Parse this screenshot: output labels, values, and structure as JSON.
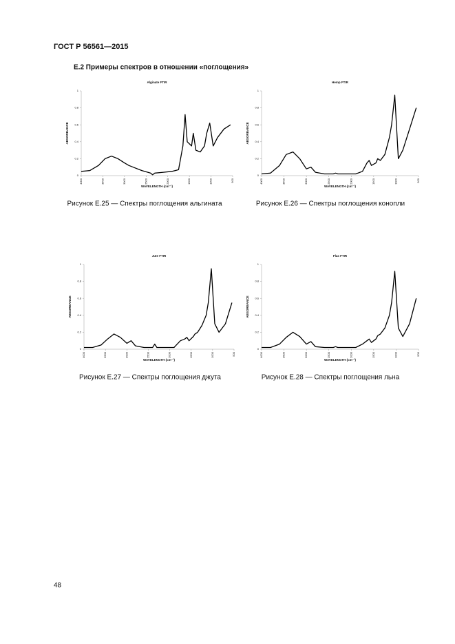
{
  "header": {
    "title": "ГОСТ Р 56561—2015"
  },
  "section": {
    "title": "Е.2 Примеры спектров в отношении «поглощения»"
  },
  "captions": [
    "Рисунок Е.25 — Спектры поглощения альгината",
    "Рисунок Е.26 — Спектры поглощения конопли",
    "Рисунок Е.27 — Спектры поглощения джута",
    "Рисунок Е.28 — Спектры поглощения льна"
  ],
  "page_number": "48",
  "chart_data": [
    {
      "type": "line",
      "title": "Alginate FTIR",
      "x_label": "WAVELENGTH (cm⁻¹)",
      "y_label": "ABSORBANCE",
      "color": "#000000",
      "x": [
        4000,
        3800,
        3600,
        3450,
        3300,
        3150,
        3000,
        2900,
        2800,
        2600,
        2400,
        2350,
        2300,
        2100,
        1900,
        1750,
        1650,
        1600,
        1550,
        1450,
        1410,
        1350,
        1250,
        1150,
        1100,
        1030,
        950,
        850,
        700,
        550
      ],
      "values": [
        0.05,
        0.06,
        0.12,
        0.2,
        0.23,
        0.2,
        0.15,
        0.12,
        0.1,
        0.06,
        0.03,
        0.01,
        0.03,
        0.04,
        0.05,
        0.07,
        0.35,
        0.72,
        0.4,
        0.35,
        0.5,
        0.3,
        0.28,
        0.35,
        0.5,
        0.62,
        0.35,
        0.45,
        0.55,
        0.6
      ],
      "xlim": [
        4000,
        500
      ],
      "ylim": [
        0,
        1
      ],
      "xticks": [
        4000,
        3500,
        3000,
        2500,
        2000,
        1500,
        1000,
        500
      ],
      "yticks": [
        0,
        0.2,
        0.4,
        0.6,
        0.8,
        1
      ]
    },
    {
      "type": "line",
      "title": "Hemp FTIR",
      "x_label": "WAVELENGTH (cm⁻¹)",
      "y_label": "ABSORBANCE",
      "color": "#000000",
      "x": [
        4000,
        3800,
        3600,
        3450,
        3300,
        3150,
        3000,
        2900,
        2800,
        2600,
        2400,
        2350,
        2300,
        2100,
        1900,
        1750,
        1650,
        1600,
        1550,
        1450,
        1410,
        1350,
        1250,
        1150,
        1100,
        1030,
        950,
        850,
        700,
        550
      ],
      "values": [
        0.02,
        0.03,
        0.12,
        0.25,
        0.28,
        0.2,
        0.08,
        0.1,
        0.04,
        0.02,
        0.02,
        0.03,
        0.02,
        0.02,
        0.02,
        0.05,
        0.15,
        0.18,
        0.12,
        0.15,
        0.2,
        0.18,
        0.25,
        0.45,
        0.6,
        0.95,
        0.2,
        0.3,
        0.55,
        0.8
      ],
      "xlim": [
        4000,
        500
      ],
      "ylim": [
        0,
        1
      ],
      "xticks": [
        4000,
        3500,
        3000,
        2500,
        2000,
        1500,
        1000,
        500
      ],
      "yticks": [
        0,
        0.2,
        0.4,
        0.6,
        0.8,
        1
      ]
    },
    {
      "type": "line",
      "title": "Jute FTIR",
      "x_label": "WAVELENGTH (cm⁻¹)",
      "y_label": "ABSORBANCE",
      "color": "#000000",
      "x": [
        4000,
        3800,
        3600,
        3450,
        3300,
        3150,
        3000,
        2900,
        2800,
        2600,
        2400,
        2350,
        2300,
        2100,
        1900,
        1750,
        1650,
        1600,
        1550,
        1450,
        1410,
        1350,
        1250,
        1150,
        1100,
        1030,
        950,
        850,
        700,
        550
      ],
      "values": [
        0.02,
        0.02,
        0.05,
        0.12,
        0.18,
        0.14,
        0.07,
        0.1,
        0.04,
        0.02,
        0.02,
        0.06,
        0.02,
        0.02,
        0.02,
        0.1,
        0.12,
        0.14,
        0.1,
        0.15,
        0.18,
        0.2,
        0.28,
        0.4,
        0.55,
        0.95,
        0.3,
        0.2,
        0.3,
        0.55
      ],
      "xlim": [
        4000,
        500
      ],
      "ylim": [
        0,
        1
      ],
      "xticks": [
        4000,
        3500,
        3000,
        2500,
        2000,
        1500,
        1000,
        500
      ],
      "yticks": [
        0,
        0.2,
        0.4,
        0.6,
        0.8,
        1
      ]
    },
    {
      "type": "line",
      "title": "Flax FTIR",
      "x_label": "WAVELENGTH (cm⁻¹)",
      "y_label": "ABSORBANCE",
      "color": "#000000",
      "x": [
        4000,
        3800,
        3600,
        3450,
        3300,
        3150,
        3000,
        2900,
        2800,
        2600,
        2400,
        2350,
        2300,
        2100,
        1900,
        1750,
        1650,
        1600,
        1550,
        1450,
        1410,
        1350,
        1250,
        1150,
        1100,
        1030,
        950,
        850,
        700,
        550
      ],
      "values": [
        0.02,
        0.02,
        0.06,
        0.14,
        0.2,
        0.15,
        0.06,
        0.09,
        0.03,
        0.02,
        0.02,
        0.03,
        0.02,
        0.02,
        0.02,
        0.06,
        0.1,
        0.12,
        0.08,
        0.12,
        0.16,
        0.18,
        0.25,
        0.4,
        0.55,
        0.92,
        0.25,
        0.15,
        0.3,
        0.6
      ],
      "xlim": [
        4000,
        500
      ],
      "ylim": [
        0,
        1
      ],
      "xticks": [
        4000,
        3500,
        3000,
        2500,
        2000,
        1500,
        1000,
        500
      ],
      "yticks": [
        0,
        0.2,
        0.4,
        0.6,
        0.8,
        1
      ]
    }
  ]
}
